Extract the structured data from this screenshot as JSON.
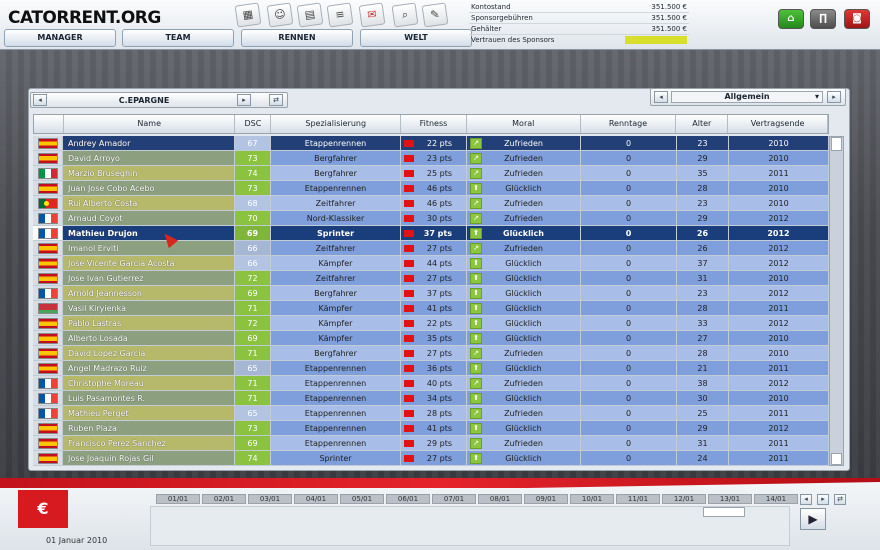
{
  "logo": "CATORRENT.ORG",
  "nav": {
    "manager": "MANAGER",
    "team": "TEAM",
    "rennen": "RENNEN",
    "welt": "WELT"
  },
  "tools": [
    "calendar-icon",
    "manager-icon",
    "money-icon",
    "document-icon",
    "mail-icon",
    "search-icon",
    "contract-icon"
  ],
  "finance": {
    "kontostand_label": "Kontostand",
    "kontostand_value": "351.500 €",
    "sponsor_label": "Sponsorgebühren",
    "sponsor_value": "351.500 €",
    "gehaelter_label": "Gehälter",
    "gehaelter_value": "351.500 €",
    "vertrauen_label": "Vertrauen des Sponsors",
    "vertrauen_level": 1.0
  },
  "team": {
    "name": "C.EPARGNE"
  },
  "view": {
    "selected": "Allgemein"
  },
  "columns": {
    "name": "Name",
    "dsc": "DSC",
    "spec": "Spezialisierung",
    "fitness": "Fitness",
    "moral": "Moral",
    "renntage": "Renntage",
    "alter": "Alter",
    "vertrag": "Vertragsende"
  },
  "riders": [
    {
      "flag": "es",
      "name": "Andrey Amador",
      "dsc": "67",
      "spec": "Etappenrennen",
      "fitness": "22 pts",
      "moral": "Zufrieden",
      "renntage": "0",
      "alter": "23",
      "vertrag": "2010"
    },
    {
      "flag": "es",
      "name": "David Arroyo",
      "dsc": "73",
      "spec": "Bergfahrer",
      "fitness": "23 pts",
      "moral": "Zufrieden",
      "renntage": "0",
      "alter": "29",
      "vertrag": "2010"
    },
    {
      "flag": "it",
      "name": "Marzio Bruseghin",
      "dsc": "74",
      "spec": "Bergfahrer",
      "fitness": "25 pts",
      "moral": "Zufrieden",
      "renntage": "0",
      "alter": "35",
      "vertrag": "2011"
    },
    {
      "flag": "es",
      "name": "Juan Jose Cobo Acebo",
      "dsc": "73",
      "spec": "Etappenrennen",
      "fitness": "46 pts",
      "moral": "Glücklich",
      "renntage": "0",
      "alter": "28",
      "vertrag": "2010"
    },
    {
      "flag": "pt",
      "name": "Rui Alberto Costa",
      "dsc": "68",
      "spec": "Zeitfahrer",
      "fitness": "46 pts",
      "moral": "Zufrieden",
      "renntage": "0",
      "alter": "23",
      "vertrag": "2010"
    },
    {
      "flag": "fr",
      "name": "Arnaud Coyot",
      "dsc": "70",
      "spec": "Nord-Klassiker",
      "fitness": "30 pts",
      "moral": "Zufrieden",
      "renntage": "0",
      "alter": "29",
      "vertrag": "2012"
    },
    {
      "flag": "fr",
      "name": "Mathieu Drujon",
      "dsc": "69",
      "spec": "Sprinter",
      "fitness": "37 pts",
      "moral": "Glücklich",
      "renntage": "0",
      "alter": "26",
      "vertrag": "2012"
    },
    {
      "flag": "es",
      "name": "Imanol Erviti",
      "dsc": "66",
      "spec": "Zeitfahrer",
      "fitness": "27 pts",
      "moral": "Zufrieden",
      "renntage": "0",
      "alter": "26",
      "vertrag": "2012"
    },
    {
      "flag": "es",
      "name": "Jose Vicente Garcia Acosta",
      "dsc": "66",
      "spec": "Kämpfer",
      "fitness": "44 pts",
      "moral": "Glücklich",
      "renntage": "0",
      "alter": "37",
      "vertrag": "2012"
    },
    {
      "flag": "es",
      "name": "Jose Ivan Gutierrez",
      "dsc": "72",
      "spec": "Zeitfahrer",
      "fitness": "27 pts",
      "moral": "Glücklich",
      "renntage": "0",
      "alter": "31",
      "vertrag": "2010"
    },
    {
      "flag": "fr",
      "name": "Arnold Jeannesson",
      "dsc": "69",
      "spec": "Bergfahrer",
      "fitness": "37 pts",
      "moral": "Glücklich",
      "renntage": "0",
      "alter": "23",
      "vertrag": "2012"
    },
    {
      "flag": "by",
      "name": "Vasil Kiryienka",
      "dsc": "71",
      "spec": "Kämpfer",
      "fitness": "41 pts",
      "moral": "Glücklich",
      "renntage": "0",
      "alter": "28",
      "vertrag": "2011"
    },
    {
      "flag": "es",
      "name": "Pablo Lastras",
      "dsc": "72",
      "spec": "Kämpfer",
      "fitness": "22 pts",
      "moral": "Glücklich",
      "renntage": "0",
      "alter": "33",
      "vertrag": "2012"
    },
    {
      "flag": "es",
      "name": "Alberto Losada",
      "dsc": "69",
      "spec": "Kämpfer",
      "fitness": "35 pts",
      "moral": "Glücklich",
      "renntage": "0",
      "alter": "27",
      "vertrag": "2010"
    },
    {
      "flag": "es",
      "name": "David Lopez Garcia",
      "dsc": "71",
      "spec": "Bergfahrer",
      "fitness": "27 pts",
      "moral": "Zufrieden",
      "renntage": "0",
      "alter": "28",
      "vertrag": "2010"
    },
    {
      "flag": "es",
      "name": "Angel Madrazo Ruiz",
      "dsc": "65",
      "spec": "Etappenrennen",
      "fitness": "36 pts",
      "moral": "Glücklich",
      "renntage": "0",
      "alter": "21",
      "vertrag": "2011"
    },
    {
      "flag": "fr",
      "name": "Christophe Moreau",
      "dsc": "71",
      "spec": "Etappenrennen",
      "fitness": "40 pts",
      "moral": "Zufrieden",
      "renntage": "0",
      "alter": "38",
      "vertrag": "2012"
    },
    {
      "flag": "fr",
      "name": "Luis Pasamontes R.",
      "dsc": "71",
      "spec": "Etappenrennen",
      "fitness": "34 pts",
      "moral": "Glücklich",
      "renntage": "0",
      "alter": "30",
      "vertrag": "2010"
    },
    {
      "flag": "fr",
      "name": "Mathieu Perget",
      "dsc": "65",
      "spec": "Etappenrennen",
      "fitness": "28 pts",
      "moral": "Zufrieden",
      "renntage": "0",
      "alter": "25",
      "vertrag": "2011"
    },
    {
      "flag": "es",
      "name": "Ruben Plaza",
      "dsc": "73",
      "spec": "Etappenrennen",
      "fitness": "41 pts",
      "moral": "Glücklich",
      "renntage": "0",
      "alter": "29",
      "vertrag": "2012"
    },
    {
      "flag": "es",
      "name": "Francisco Perez Sanchez",
      "dsc": "69",
      "spec": "Etappenrennen",
      "fitness": "29 pts",
      "moral": "Zufrieden",
      "renntage": "0",
      "alter": "31",
      "vertrag": "2011"
    },
    {
      "flag": "es",
      "name": "Jose Joaquin Rojas Gil",
      "dsc": "74",
      "spec": "Sprinter",
      "fitness": "27 pts",
      "moral": "Glücklich",
      "renntage": "0",
      "alter": "24",
      "vertrag": "2011"
    }
  ],
  "timeline": [
    "01/01",
    "02/01",
    "03/01",
    "04/01",
    "05/01",
    "06/01",
    "07/01",
    "08/01",
    "09/01",
    "10/01",
    "11/01",
    "12/01",
    "13/01",
    "14/01"
  ],
  "date": "01 Januar 2010"
}
